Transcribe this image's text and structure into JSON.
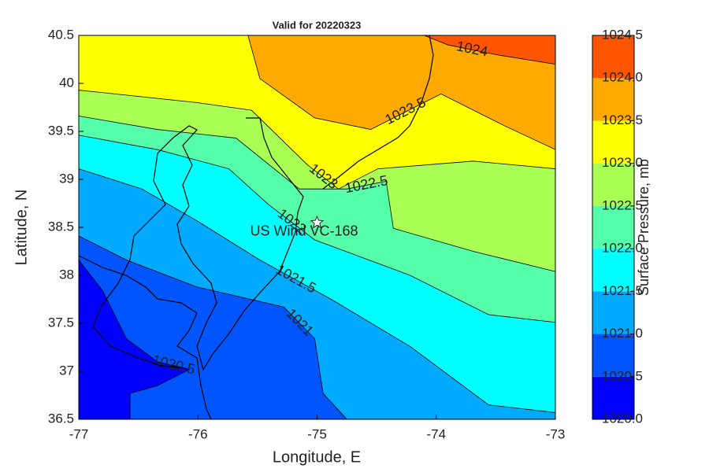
{
  "chart_data": {
    "type": "contour",
    "title": "Valid for 20220323",
    "x_label": "Longitude, E",
    "y_label": "Latitude, N",
    "xlim": [
      -77,
      -73
    ],
    "xticks": [
      -77,
      -76,
      -75,
      -74,
      -73
    ],
    "ylim": [
      36.5,
      40.5
    ],
    "yticks": [
      36.5,
      37,
      37.5,
      38,
      38.5,
      39,
      39.5,
      40,
      40.5
    ],
    "colorbar": {
      "label": "Surface Pressure, mb",
      "ticks": [
        {
          "value": 1020,
          "label": "1020.0"
        },
        {
          "value": 1020.5,
          "label": "1020.5"
        },
        {
          "value": 1021,
          "label": "1021.0"
        },
        {
          "value": 1021.5,
          "label": "1021.5"
        },
        {
          "value": 1022,
          "label": "1022.0"
        },
        {
          "value": 1022.5,
          "label": "1022.5"
        },
        {
          "value": 1023,
          "label": "1023.0"
        },
        {
          "value": 1023.5,
          "label": "1023.5"
        },
        {
          "value": 1024,
          "label": "1024.0"
        },
        {
          "value": 1024.5,
          "label": "1024.5"
        }
      ],
      "colors": [
        "#0000ff",
        "#0055ff",
        "#00aaff",
        "#00ffff",
        "#55ffaa",
        "#aaff55",
        "#ffff00",
        "#ffaa00",
        "#ff5500"
      ]
    },
    "contours": [
      {
        "level": 1024,
        "x": [
          -74.1,
          -73.9,
          -73.5,
          -73
        ],
        "y": [
          40.5,
          40.4,
          40.3,
          40.2
        ]
      },
      {
        "level": 1023.5,
        "x": [
          -75.58,
          -75.48,
          -75.02,
          -74.55,
          -73.96,
          -73.43,
          -73
        ],
        "y": [
          40.5,
          40.05,
          39.64,
          39.52,
          39.89,
          39.56,
          39.31
        ]
      },
      {
        "level": 1023,
        "x": [
          -77,
          -76.01,
          -75.55,
          -75.08,
          -74.82,
          -74.49,
          -73.69,
          -73
        ],
        "y": [
          39.93,
          39.8,
          39.72,
          39.15,
          38.9,
          39.11,
          39.19,
          39.11
        ]
      },
      {
        "level": 1022.5,
        "x": [
          -77,
          -76.34,
          -75.68,
          -75.15,
          -74.75,
          -74.42,
          -74.36,
          -73.69,
          -73
        ],
        "y": [
          39.66,
          39.52,
          39.43,
          38.9,
          38.9,
          38.98,
          38.49,
          38.25,
          38.04
        ]
      },
      {
        "level": 1022,
        "x": [
          -77,
          -76.34,
          -75.74,
          -75.41,
          -75.02,
          -74.22,
          -73.56,
          -73
        ],
        "y": [
          39.46,
          39.31,
          39.11,
          38.74,
          38.37,
          38,
          37.59,
          37.51
        ]
      },
      {
        "level": 1021.5,
        "x": [
          -77,
          -76.47,
          -76.01,
          -75.48,
          -74.88,
          -74.22,
          -73.56,
          -73
        ],
        "y": [
          39.11,
          38.9,
          38.57,
          38.16,
          37.75,
          37.26,
          36.65,
          36.57
        ]
      },
      {
        "level": 1021,
        "x": [
          -77,
          -76.6,
          -76.01,
          -75.28,
          -75.02,
          -74.95,
          -74.75
        ],
        "y": [
          38.41,
          38.16,
          37.88,
          37.67,
          37.34,
          36.77,
          36.5
        ]
      },
      {
        "level": 1020.5,
        "x": [
          -77,
          -76.8,
          -76.6,
          -76.34,
          -76.07,
          -76.34,
          -76.57,
          -76.57
        ],
        "y": [
          38.16,
          37.84,
          37.34,
          37.1,
          37.02,
          36.85,
          36.77,
          36.5
        ]
      }
    ],
    "marker": {
      "name": "US Wind VC-168",
      "x": -75,
      "y": 38.55
    }
  }
}
